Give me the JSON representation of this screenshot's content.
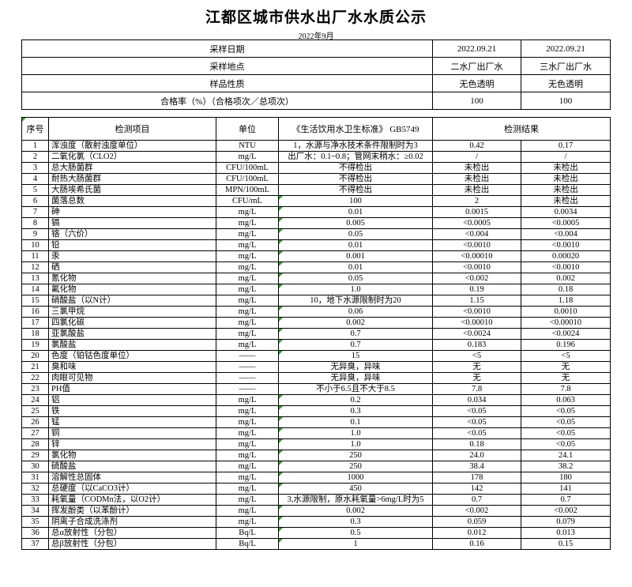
{
  "page": {
    "title": "江都区城市供水出厂水水质公示",
    "subtitle": "2022年9月"
  },
  "colors": {
    "flag_green": "#2f9e2f"
  },
  "info": {
    "rows": [
      {
        "label": "采样日期",
        "v1": "2022.09.21",
        "v2": "2022.09.21"
      },
      {
        "label": "采样地点",
        "v1": "二水厂出厂水",
        "v2": "三水厂出厂水"
      },
      {
        "label": "样品性质",
        "v1": "无色透明",
        "v2": "无色透明"
      },
      {
        "label": "合格率（%）（合格项次／总项次）",
        "v1": "100",
        "v2": "100"
      }
    ]
  },
  "table": {
    "headers": [
      "序号",
      "检测项目",
      "单位",
      "《生活饮用水卫生标准》 GB5749",
      "检测结果"
    ],
    "rows": [
      {
        "no": "1",
        "item": "浑浊度（散射浊度单位）",
        "unit": "NTU",
        "standard": "1，水源与净水技术条件限制时为3",
        "r1": "0.42",
        "r2": "0.17",
        "flag": false
      },
      {
        "no": "2",
        "item": "二氧化氯（CLO2）",
        "unit": "mg/L",
        "standard": "出厂水：0.1~0.8；管网末稍水：≥0.02",
        "r1": "/",
        "r2": "/",
        "flag": false
      },
      {
        "no": "3",
        "item": "总大肠菌群",
        "unit": "CFU/100mL",
        "standard": "不得检出",
        "r1": "未检出",
        "r2": "未检出",
        "flag": false
      },
      {
        "no": "4",
        "item": "耐热大肠菌群",
        "unit": "CFU/100mL",
        "standard": "不得检出",
        "r1": "未检出",
        "r2": "未检出",
        "flag": false
      },
      {
        "no": "5",
        "item": "大肠埃希氏菌",
        "unit": "MPN/100mL",
        "standard": "不得检出",
        "r1": "未检出",
        "r2": "未检出",
        "flag": false
      },
      {
        "no": "6",
        "item": "菌落总数",
        "unit": "CFU/mL",
        "standard": "100",
        "r1": "2",
        "r2": "未检出",
        "flag": true
      },
      {
        "no": "7",
        "item": "砷",
        "unit": "mg/L",
        "standard": "0.01",
        "r1": "0.0015",
        "r2": "0.0034",
        "flag": true
      },
      {
        "no": "8",
        "item": "镉",
        "unit": "mg/L",
        "standard": "0.005",
        "r1": "<0.0005",
        "r2": "<0.0005",
        "flag": true
      },
      {
        "no": "9",
        "item": "铬（六价）",
        "unit": "mg/L",
        "standard": "0.05",
        "r1": "<0.004",
        "r2": "<0.004",
        "flag": true
      },
      {
        "no": "10",
        "item": "铅",
        "unit": "mg/L",
        "standard": "0.01",
        "r1": "<0.0010",
        "r2": "<0.0010",
        "flag": true
      },
      {
        "no": "11",
        "item": "汞",
        "unit": "mg/L",
        "standard": "0.001",
        "r1": "<0.00010",
        "r2": "0.00020",
        "flag": true
      },
      {
        "no": "12",
        "item": "硒",
        "unit": "mg/L",
        "standard": "0.01",
        "r1": "<0.0010",
        "r2": "<0.0010",
        "flag": true
      },
      {
        "no": "13",
        "item": "氰化物",
        "unit": "mg/L",
        "standard": "0.05",
        "r1": "<0.002",
        "r2": "0.002",
        "flag": true
      },
      {
        "no": "14",
        "item": "氟化物",
        "unit": "mg/L",
        "standard": "1.0",
        "r1": "0.19",
        "r2": "0.18",
        "flag": true
      },
      {
        "no": "15",
        "item": "硝酸盐（以N计）",
        "unit": "mg/L",
        "standard": "10，地下水源限制时为20",
        "r1": "1.15",
        "r2": "1.18",
        "flag": false
      },
      {
        "no": "16",
        "item": "三氯甲烷",
        "unit": "mg/L",
        "standard": "0.06",
        "r1": "<0.0010",
        "r2": "0.0010",
        "flag": true
      },
      {
        "no": "17",
        "item": "四氯化碳",
        "unit": "mg/L",
        "standard": "0.002",
        "r1": "<0.00010",
        "r2": "<0.00010",
        "flag": true
      },
      {
        "no": "18",
        "item": "亚氯酸盐",
        "unit": "mg/L",
        "standard": "0.7",
        "r1": "<0.0024",
        "r2": "<0.0024",
        "flag": true
      },
      {
        "no": "19",
        "item": "氯酸盐",
        "unit": "mg/L",
        "standard": "0.7",
        "r1": "0.183",
        "r2": "0.196",
        "flag": true
      },
      {
        "no": "20",
        "item": "色度（铂钴色度单位）",
        "unit": "——",
        "standard": "15",
        "r1": "<5",
        "r2": "<5",
        "flag": true
      },
      {
        "no": "21",
        "item": "臭和味",
        "unit": "——",
        "standard": "无异臭，异味",
        "r1": "无",
        "r2": "无",
        "flag": false
      },
      {
        "no": "22",
        "item": "肉眼可见物",
        "unit": "——",
        "standard": "无异臭，异味",
        "r1": "无",
        "r2": "无",
        "flag": false
      },
      {
        "no": "23",
        "item": "PH值",
        "unit": "——",
        "standard": "不小于6.5且不大于8.5",
        "r1": "7.8",
        "r2": "7.8",
        "flag": false
      },
      {
        "no": "24",
        "item": "铝",
        "unit": "mg/L",
        "standard": "0.2",
        "r1": "0.034",
        "r2": "0.063",
        "flag": true
      },
      {
        "no": "25",
        "item": "铁",
        "unit": "mg/L",
        "standard": "0.3",
        "r1": "<0.05",
        "r2": "<0.05",
        "flag": true
      },
      {
        "no": "26",
        "item": "锰",
        "unit": "mg/L",
        "standard": "0.1",
        "r1": "<0.05",
        "r2": "<0.05",
        "flag": true
      },
      {
        "no": "27",
        "item": "铜",
        "unit": "mg/L",
        "standard": "1.0",
        "r1": "<0.05",
        "r2": "<0.05",
        "flag": true
      },
      {
        "no": "28",
        "item": "锌",
        "unit": "mg/L",
        "standard": "1.0",
        "r1": "0.18",
        "r2": "<0.05",
        "flag": true
      },
      {
        "no": "29",
        "item": "氯化物",
        "unit": "mg/L",
        "standard": "250",
        "r1": "24.0",
        "r2": "24.1",
        "flag": true
      },
      {
        "no": "30",
        "item": "硫酸盐",
        "unit": "mg/L",
        "standard": "250",
        "r1": "38.4",
        "r2": "38.2",
        "flag": true
      },
      {
        "no": "31",
        "item": "溶解性总固体",
        "unit": "mg/L",
        "standard": "1000",
        "r1": "178",
        "r2": "180",
        "flag": true
      },
      {
        "no": "32",
        "item": "总硬度（以CaCO3计）",
        "unit": "mg/L",
        "standard": "450",
        "r1": "142",
        "r2": "141",
        "flag": true
      },
      {
        "no": "33",
        "item": "耗氧量（CODMn法，以O2计）",
        "unit": "mg/L",
        "standard": "3,水源限制，原水耗氧量>6mg/L时为5",
        "r1": "0.7",
        "r2": "0.7",
        "flag": false
      },
      {
        "no": "34",
        "item": "挥发酚类（以苯酚计）",
        "unit": "mg/L",
        "standard": "0.002",
        "r1": "<0.002",
        "r2": "<0.002",
        "flag": true
      },
      {
        "no": "35",
        "item": "阴离子合成洗涤剂",
        "unit": "mg/L",
        "standard": "0.3",
        "r1": "0.059",
        "r2": "0.079",
        "flag": true
      },
      {
        "no": "36",
        "item": "总α放射性（分包）",
        "unit": "Bq/L",
        "standard": "0.5",
        "r1": "0.012",
        "r2": "0.013",
        "flag": true
      },
      {
        "no": "37",
        "item": "总β放射性（分包）",
        "unit": "Bq/L",
        "standard": "1",
        "r1": "0.16",
        "r2": "0.15",
        "flag": true
      }
    ]
  }
}
